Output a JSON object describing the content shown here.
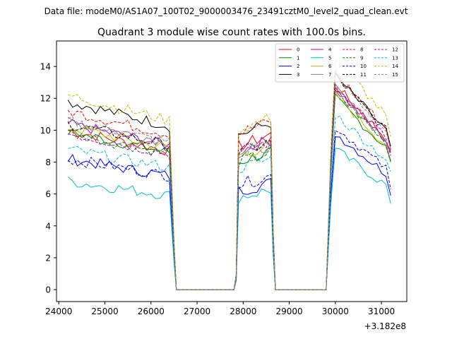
{
  "header": {
    "data_file": "Data file: modeM0/AS1A07_100T02_9000003476_23491cztM0_level2_quad_clean.evt"
  },
  "chart_data": {
    "type": "line",
    "title": "Quadrant 3 module wise count rates with 100.0s bins.",
    "xlabel": "",
    "ylabel": "",
    "x_offset_label": "+3.182e8",
    "xlim": [
      23950,
      31550
    ],
    "ylim": [
      -0.75,
      15.6
    ],
    "x_ticks": [
      24000,
      25000,
      26000,
      27000,
      28000,
      29000,
      30000,
      31000
    ],
    "x_tick_labels": [
      "24000",
      "25000",
      "26000",
      "27000",
      "28000",
      "29000",
      "30000",
      "31000"
    ],
    "y_ticks": [
      0,
      2,
      4,
      6,
      8,
      10,
      12,
      14
    ],
    "y_tick_labels": [
      "0",
      "2",
      "4",
      "6",
      "8",
      "10",
      "12",
      "14"
    ],
    "grid": false,
    "legend_position": "top-right",
    "legend_columns": 4,
    "segments": [
      {
        "start": 24200,
        "end": 26500,
        "gap_value": 0.0
      },
      {
        "start": 27850,
        "end": 28650,
        "gap_value": 0.0
      },
      {
        "start": 29900,
        "end": 31200,
        "gap_value": 0.0
      }
    ],
    "zero_ranges": [
      [
        26500,
        27800
      ],
      [
        28700,
        29850
      ]
    ],
    "series": [
      {
        "name": "0",
        "color": "#ff0000",
        "dash": "solid",
        "levels": [
          10.0,
          9.0,
          12.8,
          8.7
        ]
      },
      {
        "name": "1",
        "color": "#008000",
        "dash": "solid",
        "levels": [
          9.9,
          8.0,
          12.0,
          8.1
        ]
      },
      {
        "name": "2",
        "color": "#0000ff",
        "dash": "solid",
        "levels": [
          8.2,
          6.2,
          9.8,
          5.9
        ]
      },
      {
        "name": "3",
        "color": "#000000",
        "dash": "solid",
        "levels": [
          11.8,
          9.7,
          13.4,
          9.0
        ]
      },
      {
        "name": "4",
        "color": "#bf00bf",
        "dash": "solid",
        "levels": [
          10.4,
          8.7,
          12.6,
          8.6
        ]
      },
      {
        "name": "5",
        "color": "#00bfbf",
        "dash": "solid",
        "levels": [
          6.8,
          5.8,
          8.8,
          5.4
        ]
      },
      {
        "name": "6",
        "color": "#bfbf00",
        "dash": "solid",
        "levels": [
          10.2,
          8.4,
          12.2,
          8.0
        ]
      },
      {
        "name": "7",
        "color": "#808080",
        "dash": "solid",
        "levels": [
          10.6,
          8.4,
          12.6,
          8.0
        ]
      },
      {
        "name": "8",
        "color": "#ff0000",
        "dash": "dashed",
        "levels": [
          11.2,
          9.8,
          13.6,
          9.0
        ]
      },
      {
        "name": "9",
        "color": "#008000",
        "dash": "dashed",
        "levels": [
          9.8,
          8.0,
          12.4,
          8.0
        ]
      },
      {
        "name": "10",
        "color": "#0000ff",
        "dash": "dashed",
        "levels": [
          8.2,
          6.6,
          10.2,
          6.3
        ]
      },
      {
        "name": "11",
        "color": "#000000",
        "dash": "dashed",
        "levels": [
          10.4,
          8.6,
          13.4,
          8.8
        ]
      },
      {
        "name": "12",
        "color": "#bf00bf",
        "dash": "dashed",
        "levels": [
          9.8,
          8.6,
          12.8,
          8.4
        ]
      },
      {
        "name": "13",
        "color": "#00bfbf",
        "dash": "dashed",
        "levels": [
          8.8,
          7.6,
          11.0,
          7.4
        ]
      },
      {
        "name": "14",
        "color": "#bfbf00",
        "dash": "dashed",
        "levels": [
          12.2,
          10.0,
          14.6,
          9.6
        ]
      },
      {
        "name": "15",
        "color": "#808080",
        "dash": "dashed",
        "levels": [
          10.6,
          8.6,
          13.4,
          8.8
        ]
      }
    ]
  }
}
